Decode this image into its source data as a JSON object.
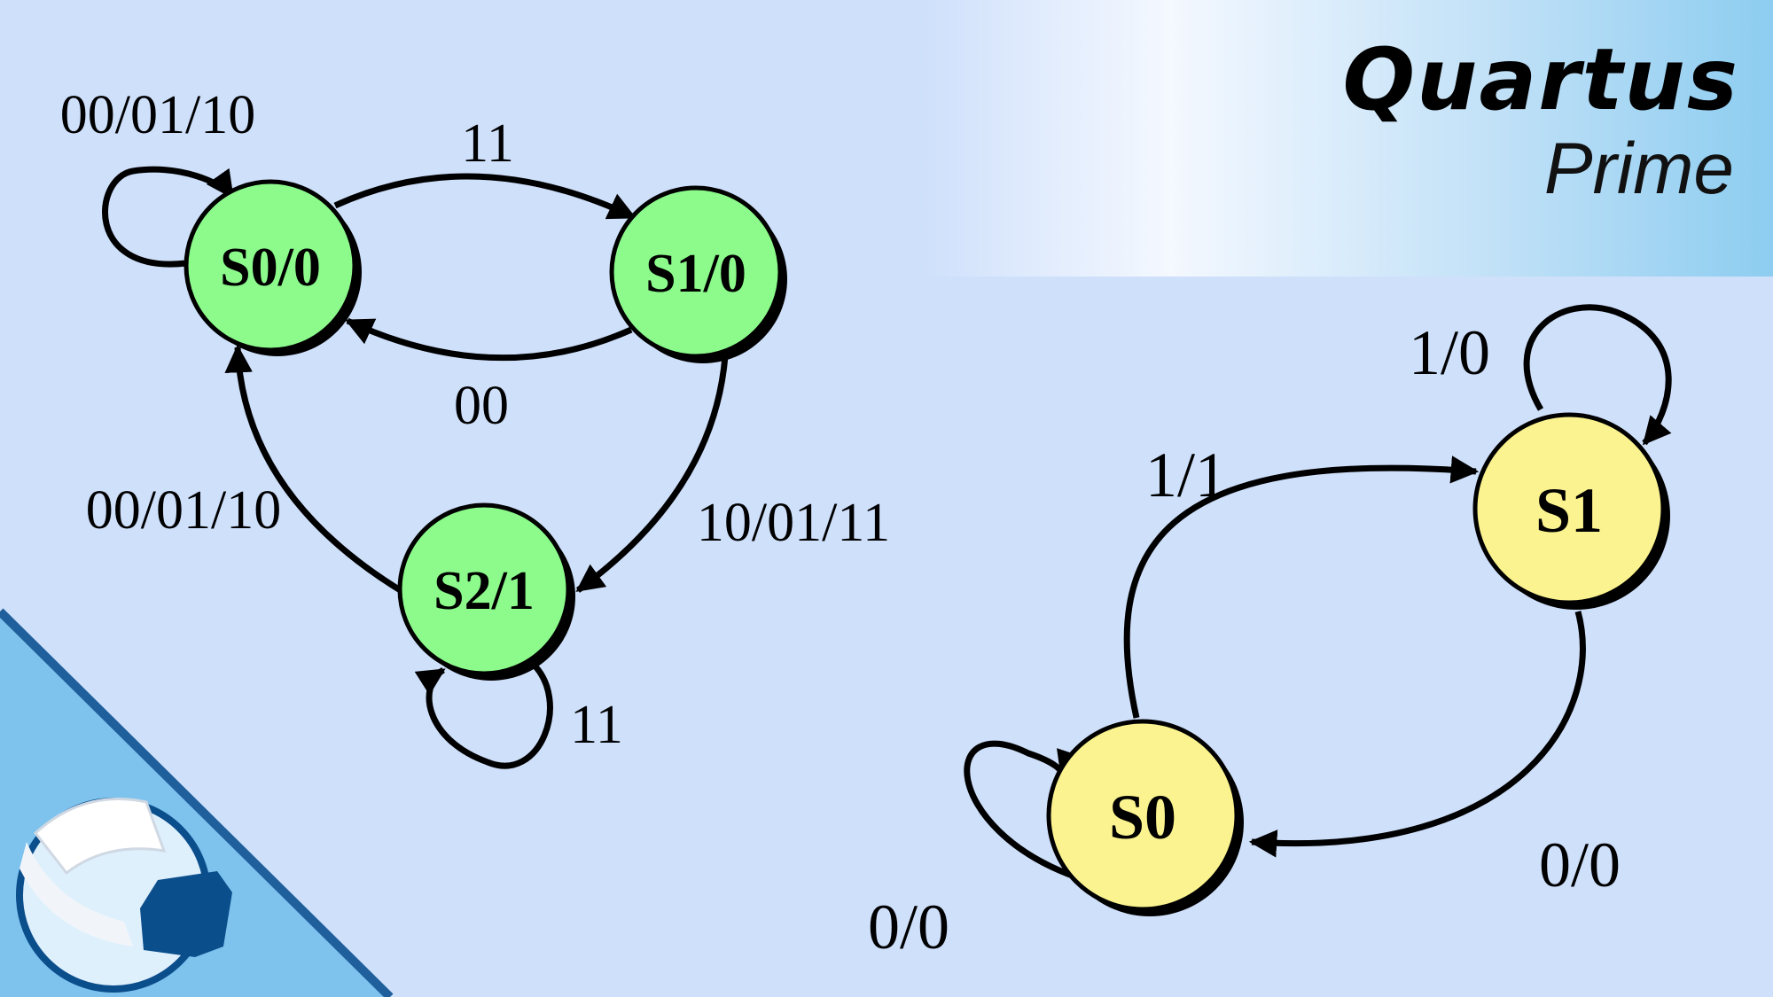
{
  "logo": {
    "title": "Quartus",
    "subtitle": "Prime"
  },
  "colors": {
    "background": "#cfe0fb",
    "moore_state_fill": "#8cfb8c",
    "mealy_state_fill": "#fbf38f",
    "corner_triangle": "#7ec3ee",
    "corner_border": "#1f5f9c",
    "channel_logo_dark": "#0b4e8c"
  },
  "moore_diagram": {
    "states": {
      "s0": "S0/0",
      "s1": "S1/0",
      "s2": "S2/1"
    },
    "transitions": {
      "s0_self": "00/01/10",
      "s0_to_s1": "11",
      "s1_to_s0": "00",
      "s1_to_s2": "10/01/11",
      "s2_to_s0": "00/01/10",
      "s2_self": "11"
    }
  },
  "mealy_diagram": {
    "states": {
      "s0": "S0",
      "s1": "S1"
    },
    "transitions": {
      "s1_self": "1/0",
      "s0_to_s1": "1/1",
      "s1_to_s0": "0/0",
      "s0_self": "0/0"
    }
  }
}
